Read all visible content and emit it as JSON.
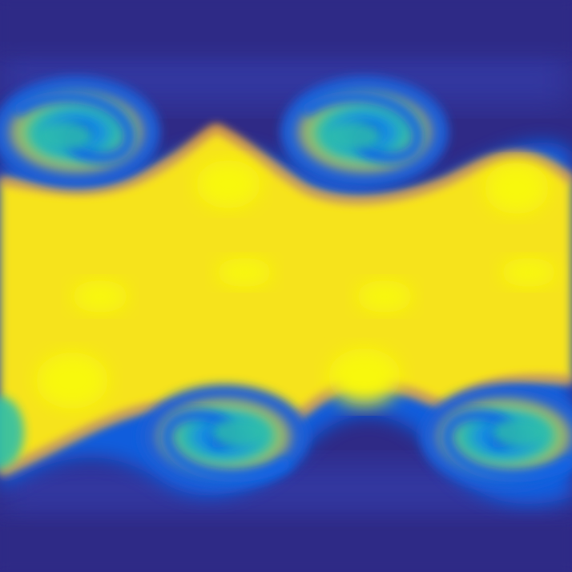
{
  "image": {
    "subject": "kelvin-helmholtz-instability-field",
    "colormap": [
      "#2f2a86",
      "#3440b0",
      "#0a64e6",
      "#1ca8d8",
      "#2ec0a8",
      "#f0a850",
      "#f6d820",
      "#f8f810"
    ],
    "background_color": "#2f2a86",
    "band_color": "#f6e31e",
    "highlight_color": "#f8f810",
    "vortex_core_color": "#0a64e6",
    "vortex_mid_color": "#1ca8d8",
    "edge_orange": "#f3a347"
  }
}
